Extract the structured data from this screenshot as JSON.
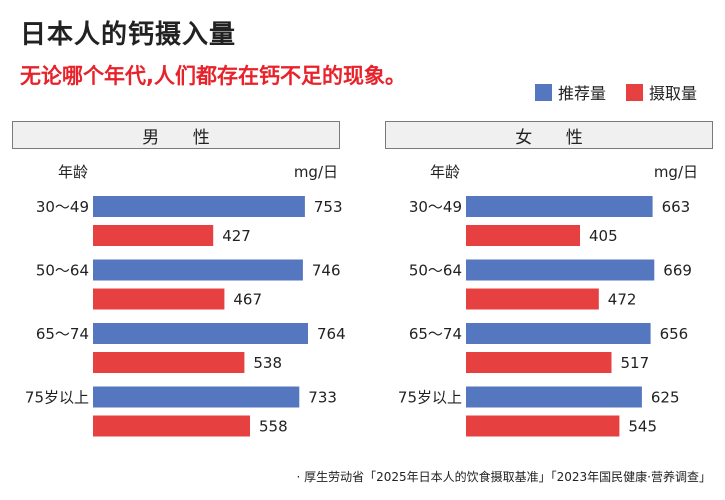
{
  "title": "日本人的钙摄入量",
  "subtitle": "无论哪个年代,人们都存在钙不足的现象。",
  "legend": [
    {
      "name": "推荐量",
      "color": "#5577c0"
    },
    {
      "name": "摄取量",
      "color": "#e64040"
    }
  ],
  "source": "· 厚生劳动省「2025年日本人的饮食摄取基准」「2023年国民健康·营养调查」",
  "chart_data": [
    {
      "type": "bar",
      "orientation": "horizontal",
      "title": "男 性",
      "ylabel": "年龄",
      "xlabel": "mg/日",
      "categories": [
        "30〜49",
        "50〜64",
        "65〜74",
        "75岁以上"
      ],
      "series": [
        {
          "name": "推荐量",
          "color": "#5577c0",
          "values": [
            753,
            746,
            764,
            733
          ]
        },
        {
          "name": "摄取量",
          "color": "#e64040",
          "values": [
            427,
            467,
            538,
            558
          ]
        }
      ],
      "xlim": [
        0,
        764
      ]
    },
    {
      "type": "bar",
      "orientation": "horizontal",
      "title": "女 性",
      "ylabel": "年龄",
      "xlabel": "mg/日",
      "categories": [
        "30〜49",
        "50〜64",
        "65〜74",
        "75岁以上"
      ],
      "series": [
        {
          "name": "推荐量",
          "color": "#5577c0",
          "values": [
            663,
            669,
            656,
            625
          ]
        },
        {
          "name": "摄取量",
          "color": "#e64040",
          "values": [
            405,
            472,
            517,
            545
          ]
        }
      ],
      "xlim": [
        0,
        764
      ]
    }
  ]
}
